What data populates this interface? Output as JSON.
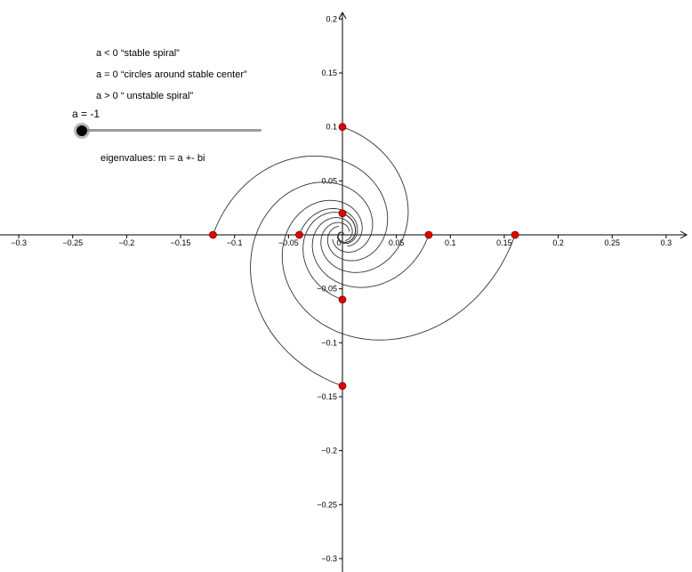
{
  "notes": {
    "stable": "a < 0  “stable spiral”",
    "center": "a = 0 “circles around stable center”",
    "unstable": "a > 0   “ unstable spiral”"
  },
  "slider": {
    "label": "a = -1",
    "value": -1,
    "min": -1,
    "max": 1
  },
  "eigen_text": "eigenvalues: m = a +- bi",
  "axes": {
    "x_ticks": [
      "−0.3",
      "−0.25",
      "−0.2",
      "−0.15",
      "−0.1",
      "−0.05",
      "0",
      "0.05",
      "0.1",
      "0.15",
      "0.2",
      "0.25",
      "0.3"
    ],
    "x_tick_values": [
      -0.3,
      -0.25,
      -0.2,
      -0.15,
      -0.1,
      -0.05,
      0,
      0.05,
      0.1,
      0.15,
      0.2,
      0.25,
      0.3
    ],
    "y_ticks": [
      "0.2",
      "0.15",
      "0.1",
      "0.05",
      "−0.05",
      "−0.1",
      "−0.15",
      "−0.2",
      "−0.25",
      "−0.3"
    ],
    "y_tick_values": [
      0.2,
      0.15,
      0.1,
      0.05,
      -0.05,
      -0.1,
      -0.15,
      -0.2,
      -0.25,
      -0.3
    ]
  },
  "initial_points": [
    [
      -0.12,
      0
    ],
    [
      -0.04,
      0
    ],
    [
      0.08,
      0
    ],
    [
      0.16,
      0
    ],
    [
      0,
      0.1
    ],
    [
      0,
      0.02
    ],
    [
      0,
      -0.06
    ],
    [
      0,
      -0.14
    ]
  ],
  "colors": {
    "point": "#e00000",
    "curve": "#333333",
    "axis": "#000000",
    "slider_track": "#9c9c9c"
  }
}
